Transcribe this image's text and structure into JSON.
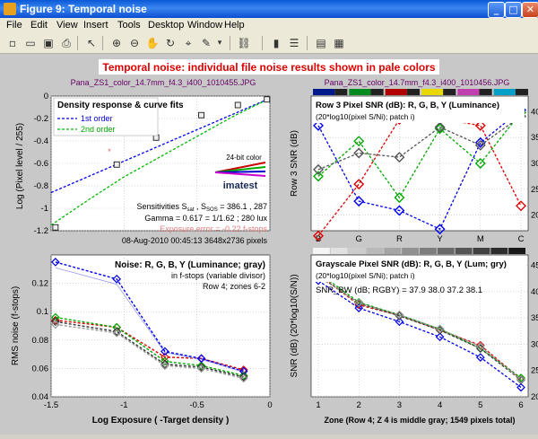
{
  "window": {
    "title": "Figure 9: Temporal noise",
    "minimize": "_",
    "maximize": "□",
    "close": "✕"
  },
  "menu": [
    "File",
    "Edit",
    "View",
    "Insert",
    "Tools",
    "Desktop",
    "Window",
    "Help"
  ],
  "toolbar": [
    "new-file-icon",
    "open-file-icon",
    "save-icon",
    "print-icon",
    "pointer-icon",
    "zoom-in-icon",
    "zoom-out-icon",
    "pan-hand-icon",
    "rotate-3d-icon",
    "data-cursor-icon",
    "brush-icon",
    "colorbar-icon",
    "legend-icon",
    "plot-browser-icon",
    "property-editor-icon"
  ],
  "figure": {
    "banner": "Temporal noise:  individual file noise results shown in pale colors",
    "file_left": "Pana_ZS1_color_14.7mm_f4.3_i400_1010455.JPG",
    "file_right": "Pana_ZS1_color_14.7mm_f4.3_i400_1010456.JPG"
  },
  "panels": {
    "density": {
      "title": "Density response & curve fits",
      "legend": [
        "1st order",
        "2nd order"
      ],
      "ylabel": "Log (Pixel level / 255)",
      "logo_label": "24-bit color",
      "logo": "imatest",
      "info": [
        "Sensitivities S_sat , S_SOS = 386.1 ,  287",
        "Gamma = 0.617 = 1/1.62 ;  280 lux",
        "Exposure error = -0.22 f-stops",
        "08-Aug-2010 00:45:13   3648x2736 pixels"
      ],
      "sens_text": "Sensitivities S",
      "sens_sub1": "sat",
      "sens_sep": " , S",
      "sens_sub2": "SOS",
      "sens_vals": " = 386.1 ,  287",
      "yticks": [
        "0",
        "-0.2",
        "-0.4",
        "-0.6",
        "-0.8",
        "-1",
        "-1.2"
      ]
    },
    "rms": {
      "title": "Noise: R, G, B, Y (Luminance; gray)",
      "sub1": "in f-stops (variable divisor)",
      "sub2": "Row 4; zones 6-2",
      "ylabel": "RMS noise (f-stops)",
      "xlabel": "Log Exposure ( -Target density )",
      "xticks": [
        "-1.5",
        "-1",
        "-0.5",
        "0"
      ],
      "yticks": [
        "0.12",
        "0.1",
        "0.08",
        "0.06",
        "0.04"
      ]
    },
    "row3": {
      "title": "Row 3 Pixel SNR (dB): R, G, B, Y (Luminance)",
      "sub": "(20*log10(pixel S/Ni); patch i)",
      "ylabel": "Row 3 SNR (dB)",
      "xticks": [
        "B",
        "G",
        "R",
        "Y",
        "M",
        "C"
      ],
      "yticks": [
        "40",
        "35",
        "30",
        "25",
        "20"
      ]
    },
    "gray": {
      "title": "Grayscale Pixel SNR (dB): R, G, B, Y (Lum; gry)",
      "sub": "(20*log10(pixel S/Ni); patch i)",
      "snr_line": "SNR_BW (dB; RGBY) = 37.9 38.0 37.2 38.1",
      "ylabel": "SNR (dB) (20*log10(S/N))",
      "xlabel": "Zone  (Row 4; Z 4 is middle gray;  1549 pixels total)",
      "xticks": [
        "1",
        "2",
        "3",
        "4",
        "5",
        "6"
      ],
      "yticks": [
        "45",
        "40",
        "35",
        "30",
        "25",
        "20"
      ]
    }
  },
  "chart_data": [
    {
      "type": "line",
      "title": "Density response & curve fits",
      "ylabel": "Log (Pixel level / 255)",
      "xlim": [
        -1.5,
        0
      ],
      "ylim": [
        -1.2,
        0
      ],
      "series": [
        {
          "name": "1st order",
          "x": [
            -1.5,
            0
          ],
          "y": [
            -0.86,
            -0.02
          ]
        },
        {
          "name": "2nd order",
          "x": [
            -1.5,
            -1.25,
            -1.0,
            -0.75,
            -0.5,
            -0.25,
            0
          ],
          "y": [
            -1.15,
            -0.93,
            -0.72,
            -0.54,
            -0.36,
            -0.18,
            -0.02
          ]
        }
      ],
      "points": {
        "x": [
          -1.47,
          -1.05,
          -0.78,
          -0.47,
          -0.22,
          -0.02
        ],
        "y": [
          -1.17,
          -0.61,
          -0.37,
          -0.17,
          -0.08,
          -0.03
        ]
      }
    },
    {
      "type": "line",
      "title": "Noise: R, G, B, Y (Luminance; gray)",
      "xlabel": "Log Exposure ( -Target density )",
      "ylabel": "RMS noise (f-stops)",
      "xlim": [
        -1.5,
        0
      ],
      "ylim": [
        0.04,
        0.14
      ],
      "x": [
        -1.47,
        -1.05,
        -0.72,
        -0.47,
        -0.18
      ],
      "series": [
        {
          "name": "R",
          "color": "#dd0000",
          "values": [
            0.094,
            0.089,
            0.068,
            0.067,
            0.059
          ]
        },
        {
          "name": "G",
          "color": "#00aa00",
          "values": [
            0.096,
            0.089,
            0.065,
            0.062,
            0.055
          ]
        },
        {
          "name": "B",
          "color": "#0000ee",
          "values": [
            0.135,
            0.123,
            0.072,
            0.067,
            0.058
          ]
        },
        {
          "name": "Y",
          "color": "#333333",
          "values": [
            0.093,
            0.086,
            0.063,
            0.061,
            0.054
          ]
        },
        {
          "name": "gray",
          "color": "#999999",
          "values": [
            0.091,
            0.085,
            0.062,
            0.06,
            0.053
          ]
        }
      ]
    },
    {
      "type": "line",
      "title": "Row 3 Pixel SNR (dB): R, G, B, Y (Luminance)",
      "ylabel": "Row 3 SNR (dB)",
      "ylim": [
        17,
        43
      ],
      "categories": [
        "B",
        "G",
        "R",
        "Y",
        "M",
        "C"
      ],
      "series": [
        {
          "name": "R",
          "color": "#dd0000",
          "values": [
            16.0,
            26.0,
            38.5,
            38.7,
            37.3,
            21.8
          ]
        },
        {
          "name": "G",
          "color": "#00aa00",
          "values": [
            27.5,
            34.3,
            23.4,
            36.7,
            30.0,
            39.8
          ]
        },
        {
          "name": "B",
          "color": "#0000ee",
          "values": [
            37.3,
            22.7,
            20.9,
            17.3,
            34.0,
            40.3
          ]
        },
        {
          "name": "Y",
          "color": "#555555",
          "values": [
            28.8,
            32.0,
            31.2,
            37.0,
            33.5,
            39.1
          ]
        }
      ]
    },
    {
      "type": "line",
      "title": "Grayscale Pixel SNR (dB): R, G, B, Y (Lum; gry)",
      "xlabel": "Zone  (Row 4; Z 4 is middle gray;  1549 pixels total)",
      "ylabel": "SNR (dB) (20*log10(S/N))",
      "ylim": [
        20,
        47
      ],
      "categories": [
        "1",
        "2",
        "3",
        "4",
        "5",
        "6"
      ],
      "series": [
        {
          "name": "R",
          "color": "#dd0000",
          "values": [
            43.3,
            37.5,
            35.5,
            32.7,
            29.8,
            23.4
          ]
        },
        {
          "name": "G",
          "color": "#00aa00",
          "values": [
            43.6,
            38.0,
            35.6,
            32.9,
            29.2,
            23.6
          ]
        },
        {
          "name": "B",
          "color": "#0000ee",
          "values": [
            42.1,
            36.9,
            34.3,
            31.4,
            27.5,
            21.8
          ]
        },
        {
          "name": "Y",
          "color": "#333333",
          "values": [
            43.1,
            37.8,
            35.4,
            32.7,
            29.2,
            23.2
          ]
        },
        {
          "name": "gray",
          "color": "#999999",
          "values": [
            42.9,
            37.9,
            35.6,
            32.9,
            29.6,
            23.3
          ]
        }
      ]
    }
  ]
}
